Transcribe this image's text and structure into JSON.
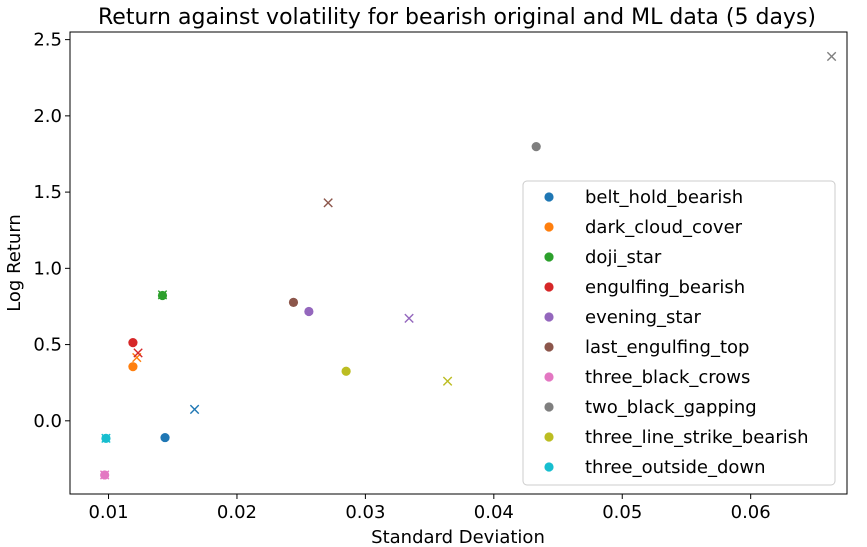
{
  "chart_data": {
    "type": "scatter",
    "title": "Return against volatility for bearish original and ML data (5 days)",
    "xlabel": "Standard Deviation",
    "ylabel": "Log Return",
    "xlim": [
      0.007,
      0.0675
    ],
    "ylim": [
      -0.48,
      2.55
    ],
    "xticks": [
      0.01,
      0.02,
      0.03,
      0.04,
      0.05,
      0.06
    ],
    "xtick_labels": [
      "0.01",
      "0.02",
      "0.03",
      "0.04",
      "0.05",
      "0.06"
    ],
    "yticks": [
      0.0,
      0.5,
      1.0,
      1.5,
      2.0,
      2.5
    ],
    "ytick_labels": [
      "0.0",
      "0.5",
      "1.0",
      "1.5",
      "2.0",
      "2.5"
    ],
    "grid": false,
    "legend_position": "center-right",
    "series": [
      {
        "name": "belt_hold_bearish",
        "color": "#1f77b4",
        "original": [
          0.0144,
          -0.11
        ],
        "ml": [
          0.0167,
          0.075
        ]
      },
      {
        "name": "dark_cloud_cover",
        "color": "#ff7f0e",
        "original": [
          0.0119,
          0.355
        ],
        "ml": [
          0.0122,
          0.415
        ]
      },
      {
        "name": "doji_star",
        "color": "#2ca02c",
        "original": [
          0.0142,
          0.822
        ],
        "ml": [
          0.0142,
          0.826
        ]
      },
      {
        "name": "engulfing_bearish",
        "color": "#d62728",
        "original": [
          0.0119,
          0.513
        ],
        "ml": [
          0.0123,
          0.445
        ]
      },
      {
        "name": "evening_star",
        "color": "#9467bd",
        "original": [
          0.0256,
          0.717
        ],
        "ml": [
          0.0334,
          0.672
        ]
      },
      {
        "name": "last_engulfing_top",
        "color": "#8c564b",
        "original": [
          0.0244,
          0.777
        ],
        "ml": [
          0.0271,
          1.43
        ]
      },
      {
        "name": "three_black_crows",
        "color": "#e377c2",
        "original": [
          0.0097,
          -0.355
        ],
        "ml": [
          0.0097,
          -0.355
        ]
      },
      {
        "name": "two_black_gapping",
        "color": "#7f7f7f",
        "original": [
          0.0433,
          1.798
        ],
        "ml": [
          0.0663,
          2.39
        ]
      },
      {
        "name": "three_line_strike_bearish",
        "color": "#bcbd22",
        "original": [
          0.0285,
          0.325
        ],
        "ml": [
          0.0364,
          0.26
        ]
      },
      {
        "name": "three_outside_down",
        "color": "#17becf",
        "original": [
          0.0098,
          -0.115
        ],
        "ml": [
          0.0098,
          -0.115
        ]
      }
    ]
  }
}
